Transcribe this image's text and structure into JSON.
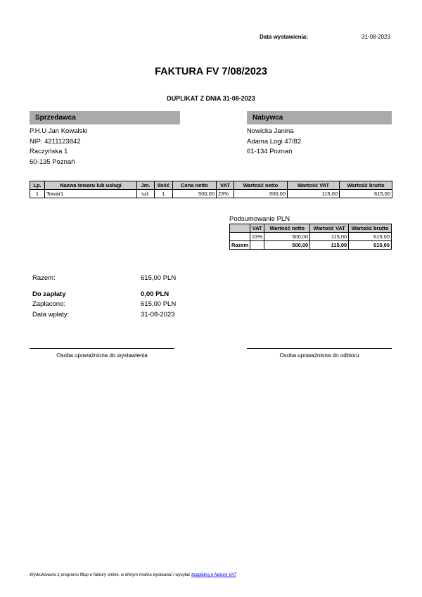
{
  "issue": {
    "label": "Data wystawienia:",
    "date": "31-08-2023"
  },
  "title": "FAKTURA FV 7/08/2023",
  "subtitle": "DUPLIKAT Z DNIA 31-08-2023",
  "seller": {
    "header": "Sprzedawca",
    "lines": [
      "P.H.U Jan Kowalski",
      "NIP: 4211123842",
      "Raczyńska 1",
      "60-135 Poznań"
    ]
  },
  "buyer": {
    "header": "Nabywca",
    "lines": [
      "Nowicka Janina",
      "Adama Logi 47/82",
      "61-134 Poznań"
    ]
  },
  "items": {
    "headers": [
      "Lp.",
      "Nazwa towaru lub usługi",
      "Jm.",
      "Ilość",
      "Cena netto",
      "VAT",
      "Wartość netto",
      "Wartość VAT",
      "Wartość brutto"
    ],
    "rows": [
      [
        "1",
        "Towar1",
        "szt.",
        "1",
        "500,00",
        "23%",
        "500,00",
        "115,00",
        "615,00"
      ]
    ]
  },
  "summary": {
    "caption": "Podsumowanie PLN",
    "headers": [
      "",
      "VAT",
      "Wartość netto",
      "Wartość VAT",
      "Wartość brutto"
    ],
    "rows": [
      [
        "",
        "23%",
        "500,00",
        "115,00",
        "615,00"
      ]
    ],
    "total": [
      "Razem",
      "",
      "500,00",
      "115,00",
      "615,00"
    ]
  },
  "totals": {
    "razem_label": "Razem:",
    "razem": "615,00 PLN",
    "do_zaplaty_label": "Do zapłaty",
    "do_zaplaty": "0,00 PLN",
    "zaplacono_label": "Zapłacono:",
    "zaplacono": "615,00 PLN",
    "data_wplaty_label": "Data wpłaty:",
    "data_wplaty": "31-08-2023"
  },
  "signatures": {
    "left": "Osoba upoważniona do wystawienia",
    "right": "Osoba upoważniona do odbioru"
  },
  "footer": {
    "text": "Wydrukowano z programu fillup e-faktury online, w którym można wystawiać i wysyłać ",
    "link": "bezpłatną e-fakturę VAT",
    "link_color": "#0000ee"
  }
}
